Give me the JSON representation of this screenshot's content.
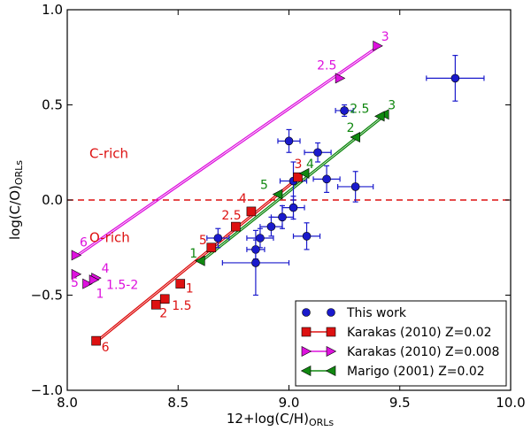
{
  "chart_data": {
    "type": "scatter",
    "xlabel_main": "12+log(C/H)",
    "xlabel_sub": "ORLs",
    "ylabel_main": "log(C/O)",
    "ylabel_sub": "ORLs",
    "xlim": [
      8.0,
      10.0
    ],
    "ylim": [
      -1.0,
      1.0
    ],
    "xticks": [
      "8.0",
      "8.5",
      "9.0",
      "9.5",
      "10.0"
    ],
    "yticks": [
      "−1.0",
      "−0.5",
      "0.0",
      "0.5",
      "1.0"
    ],
    "grid": false,
    "legend_position": "lower-right",
    "hline": {
      "y": 0.0,
      "color": "#dd1111",
      "style": "dashed"
    },
    "region_labels": [
      {
        "text": "C-rich",
        "x": 8.1,
        "y": 0.22,
        "color": "#dd1111"
      },
      {
        "text": "O-rich",
        "x": 8.1,
        "y": -0.22,
        "color": "#dd1111"
      }
    ],
    "observations": {
      "name": "This work",
      "color": "#1a1acc",
      "points": [
        {
          "x": 9.75,
          "y": 0.64,
          "xerr": 0.13,
          "yerr": 0.12
        },
        {
          "x": 9.25,
          "y": 0.47,
          "xerr": 0.04,
          "yerr": 0.03
        },
        {
          "x": 9.0,
          "y": 0.31,
          "xerr": 0.05,
          "yerr": 0.06
        },
        {
          "x": 9.13,
          "y": 0.25,
          "xerr": 0.06,
          "yerr": 0.05
        },
        {
          "x": 9.17,
          "y": 0.11,
          "xerr": 0.06,
          "yerr": 0.07
        },
        {
          "x": 9.3,
          "y": 0.07,
          "xerr": 0.08,
          "yerr": 0.08
        },
        {
          "x": 9.02,
          "y": 0.1,
          "xerr": 0.06,
          "yerr": 0.1
        },
        {
          "x": 9.02,
          "y": -0.04,
          "xerr": 0.05,
          "yerr": 0.06
        },
        {
          "x": 8.97,
          "y": -0.09,
          "xerr": 0.05,
          "yerr": 0.06
        },
        {
          "x": 8.92,
          "y": -0.14,
          "xerr": 0.05,
          "yerr": 0.05
        },
        {
          "x": 9.08,
          "y": -0.19,
          "xerr": 0.06,
          "yerr": 0.07
        },
        {
          "x": 8.87,
          "y": -0.2,
          "xerr": 0.06,
          "yerr": 0.05
        },
        {
          "x": 8.68,
          "y": -0.2,
          "xerr": 0.05,
          "yerr": 0.05
        },
        {
          "x": 8.85,
          "y": -0.26,
          "xerr": 0.04,
          "yerr": 0.05
        },
        {
          "x": 8.85,
          "y": -0.33,
          "xerr": 0.15,
          "yerr": 0.17
        }
      ]
    },
    "series": [
      {
        "name": "Karakas (2010) Z=0.02",
        "color": "#dd1111",
        "marker": "square",
        "points": [
          {
            "x": 8.13,
            "y": -0.74,
            "label": "6"
          },
          {
            "x": 8.4,
            "y": -0.55,
            "label": "2"
          },
          {
            "x": 8.44,
            "y": -0.52,
            "label": "1.5"
          },
          {
            "x": 8.51,
            "y": -0.44,
            "label": "1"
          },
          {
            "x": 8.65,
            "y": -0.25,
            "label": "5"
          },
          {
            "x": 8.76,
            "y": -0.14,
            "label": "2.5"
          },
          {
            "x": 8.83,
            "y": -0.06,
            "label": "4"
          },
          {
            "x": 9.04,
            "y": 0.12,
            "label": "3"
          }
        ]
      },
      {
        "name": "Karakas (2010) Z=0.008",
        "color": "#dd11dd",
        "marker": "triangle-right",
        "points": [
          {
            "x": 8.04,
            "y": -0.29,
            "label": "6"
          },
          {
            "x": 8.04,
            "y": -0.39,
            "label": "5"
          },
          {
            "x": 8.13,
            "y": -0.41,
            "label": "4"
          },
          {
            "x": 8.09,
            "y": -0.44,
            "label": "1"
          },
          {
            "x": 8.12,
            "y": -0.42,
            "label": "1.5-2"
          },
          {
            "x": 9.23,
            "y": 0.64,
            "label": "2.5"
          },
          {
            "x": 9.4,
            "y": 0.81,
            "label": "3"
          }
        ]
      },
      {
        "name": "Marigo (2001) Z=0.02",
        "color": "#118811",
        "marker": "triangle-left",
        "points": [
          {
            "x": 8.6,
            "y": -0.32,
            "label": "1"
          },
          {
            "x": 8.95,
            "y": 0.03,
            "label": "5"
          },
          {
            "x": 9.07,
            "y": 0.14,
            "label": "4"
          },
          {
            "x": 9.3,
            "y": 0.33,
            "label": "2"
          },
          {
            "x": 9.43,
            "y": 0.45,
            "label": "3"
          },
          {
            "x": 9.41,
            "y": 0.44,
            "label": "2.5"
          }
        ]
      }
    ]
  }
}
